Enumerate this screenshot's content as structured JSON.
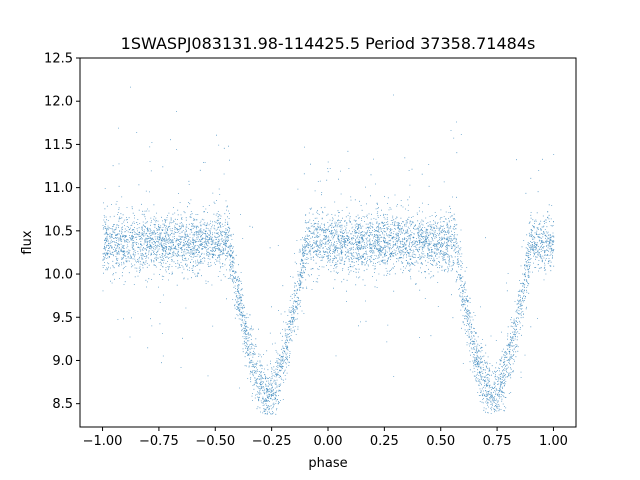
{
  "chart_data": {
    "type": "scatter",
    "title": "1SWASPJ083131.98-114425.5 Period 37358.71484s",
    "xlabel": "phase",
    "ylabel": "flux",
    "xlim": [
      -1.1,
      1.1
    ],
    "ylim": [
      8.23,
      12.5
    ],
    "xticks": [
      -1.0,
      -0.75,
      -0.5,
      -0.25,
      0.0,
      0.25,
      0.5,
      0.75,
      1.0
    ],
    "xtick_labels": [
      "−1.00",
      "−0.75",
      "−0.50",
      "−0.25",
      "0.00",
      "0.25",
      "0.50",
      "0.75",
      "1.00"
    ],
    "yticks": [
      8.5,
      9.0,
      9.5,
      10.0,
      10.5,
      11.0,
      11.5,
      12.0,
      12.5
    ],
    "ytick_labels": [
      "8.5",
      "9.0",
      "9.5",
      "10.0",
      "10.5",
      "11.0",
      "11.5",
      "12.0",
      "12.5"
    ],
    "grid": false,
    "legend": "none",
    "point_color": "#1f77b4",
    "baseline_flux": 10.37,
    "baseline_scatter": 0.17,
    "phase_range": [
      -1.0,
      1.0
    ],
    "eclipses": [
      {
        "phase_center": -0.27,
        "half_width": 0.17,
        "min_flux": 8.6
      },
      {
        "phase_center": 0.73,
        "half_width": 0.17,
        "min_flux": 8.6
      }
    ]
  }
}
